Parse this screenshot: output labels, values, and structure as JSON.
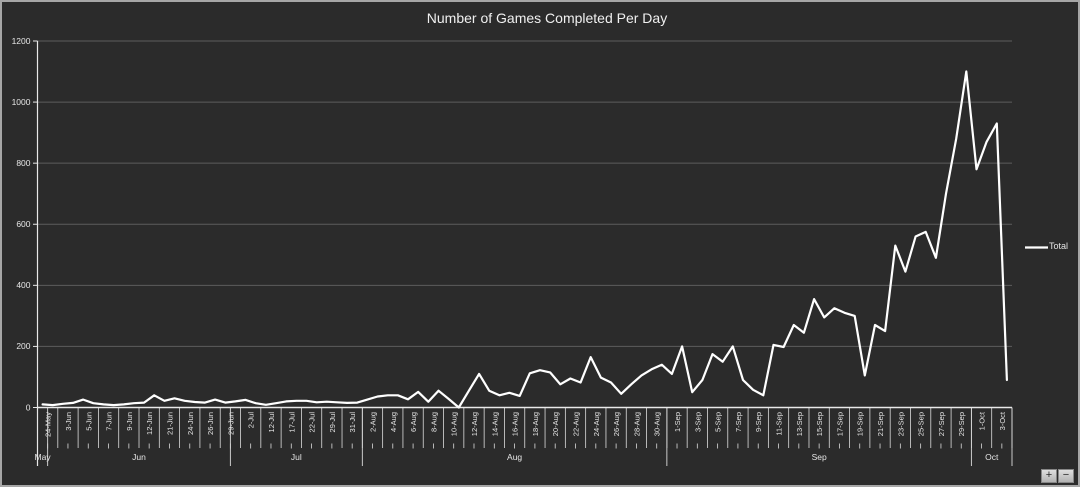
{
  "window": {
    "background": "#2b2b2b",
    "border_color": "#a6a6a6"
  },
  "title": "Number of Games Completed Per Day",
  "legend": {
    "label": "Total",
    "marker_color": "#ffffff",
    "position": "right"
  },
  "controls": {
    "zoom_in_label": "+",
    "zoom_out_label": "−"
  },
  "chart_data": {
    "type": "line",
    "title": "Number of Games Completed Per Day",
    "grid": true,
    "legend_position": "right",
    "ylim": [
      0,
      1200
    ],
    "y_ticks": [
      0,
      200,
      400,
      600,
      800,
      1000,
      1200
    ],
    "colors": {
      "background": "#2b2b2b",
      "gridline": "#5d5d5d",
      "axis": "#e9e9e9",
      "tick_separator": "#dcdcdc",
      "text": "#e6e6e6",
      "series": "#ffffff"
    },
    "x_tick_labels": [
      "24-May",
      "3-Jun",
      "5-Jun",
      "7-Jun",
      "9-Jun",
      "12-Jun",
      "21-Jun",
      "24-Jun",
      "26-Jun",
      "29-Jun",
      "2-Jul",
      "12-Jul",
      "17-Jul",
      "22-Jul",
      "29-Jul",
      "31-Jul",
      "2-Aug",
      "4-Aug",
      "6-Aug",
      "8-Aug",
      "10-Aug",
      "12-Aug",
      "14-Aug",
      "16-Aug",
      "18-Aug",
      "20-Aug",
      "22-Aug",
      "24-Aug",
      "26-Aug",
      "28-Aug",
      "30-Aug",
      "1-Sep",
      "3-Sep",
      "5-Sep",
      "7-Sep",
      "9-Sep",
      "11-Sep",
      "13-Sep",
      "15-Sep",
      "17-Sep",
      "19-Sep",
      "21-Sep",
      "23-Sep",
      "25-Sep",
      "27-Sep",
      "29-Sep",
      "1-Oct",
      "3-Oct"
    ],
    "x_label_interval": 2,
    "x_months": [
      {
        "label": "May",
        "points": 1
      },
      {
        "label": "Jun",
        "points": 18
      },
      {
        "label": "Jul",
        "points": 13
      },
      {
        "label": "Aug",
        "points": 30
      },
      {
        "label": "Sep",
        "points": 30
      },
      {
        "label": "Oct",
        "points": 4
      }
    ],
    "series": [
      {
        "name": "Total",
        "color": "#ffffff",
        "values": [
          10,
          8,
          12,
          15,
          26,
          14,
          10,
          8,
          10,
          14,
          16,
          40,
          22,
          30,
          22,
          18,
          16,
          26,
          16,
          20,
          25,
          14,
          9,
          14,
          20,
          22,
          22,
          17,
          19,
          17,
          15,
          16,
          26,
          36,
          40,
          40,
          27,
          51,
          19,
          55,
          28,
          0,
          55,
          110,
          55,
          40,
          48,
          38,
          112,
          122,
          115,
          76,
          95,
          82,
          165,
          98,
          82,
          45,
          76,
          105,
          125,
          140,
          110,
          200,
          50,
          90,
          175,
          150,
          200,
          90,
          58,
          40,
          205,
          198,
          270,
          245,
          355,
          295,
          325,
          310,
          300,
          105,
          270,
          250,
          530,
          445,
          560,
          575,
          490,
          700,
          880,
          1100,
          780,
          870,
          930,
          90
        ]
      }
    ]
  }
}
